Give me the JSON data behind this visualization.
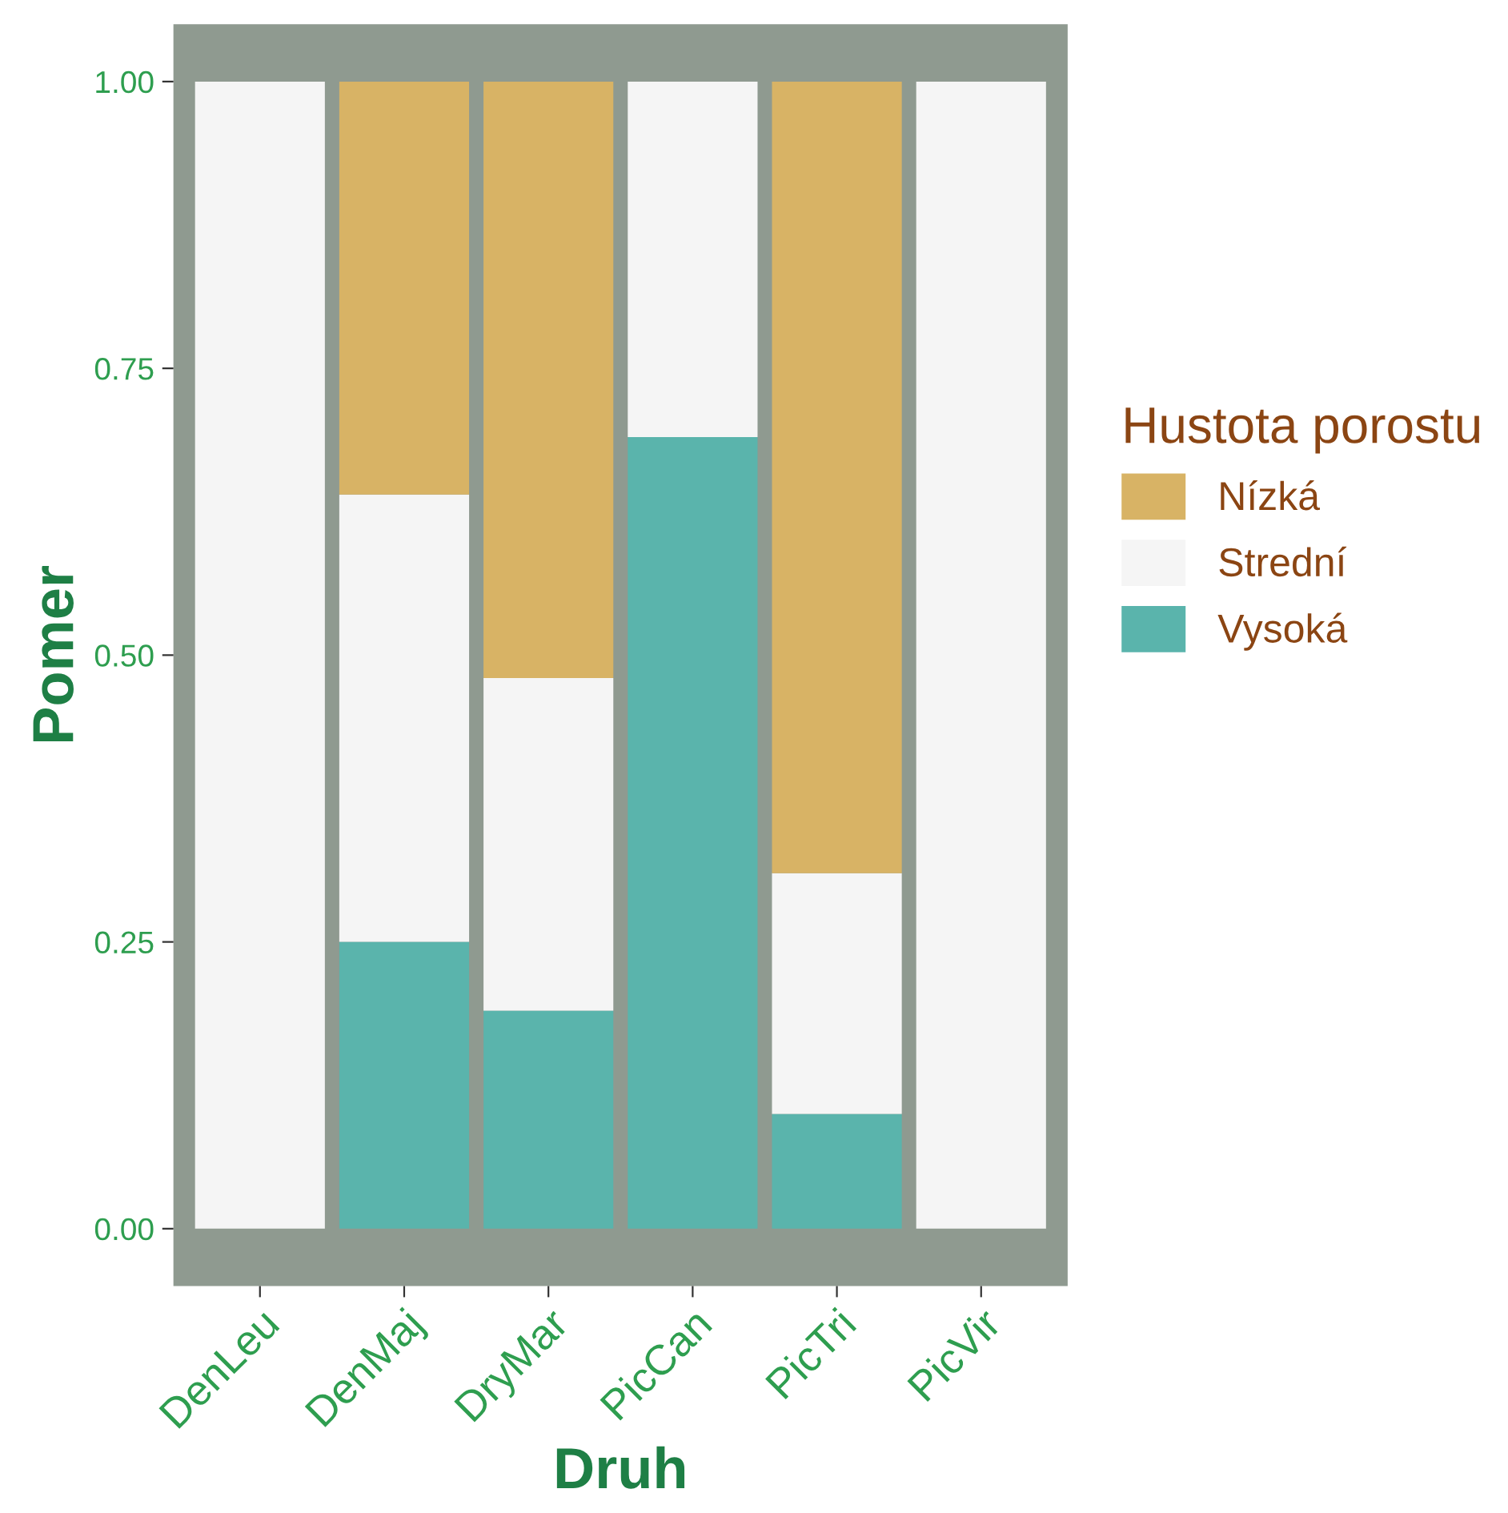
{
  "chart_data": {
    "type": "bar",
    "stacked": true,
    "xlabel": "Druh",
    "ylabel": "Pomer",
    "legend_title": "Hustota porostu",
    "legend": "right",
    "categories": [
      "DenLeu",
      "DenMaj",
      "DryMar",
      "PicCan",
      "PicTri",
      "PicVir"
    ],
    "series": [
      {
        "name": "Vysoká",
        "color": "#5ab4ac",
        "values": [
          0,
          0.25,
          0.19,
          0.69,
          0.1,
          0
        ]
      },
      {
        "name": "Strední",
        "color": "#f5f5f5",
        "values": [
          1,
          0.39,
          0.29,
          0.31,
          0.21,
          1
        ]
      },
      {
        "name": "Nízká",
        "color": "#d8b365",
        "values": [
          0,
          0.36,
          0.52,
          0,
          0.69,
          0
        ]
      }
    ],
    "ylim": [
      -0.05,
      1.05
    ],
    "yticks": [
      {
        "value": 0,
        "label": "0.00"
      },
      {
        "value": 0.25,
        "label": "0.25"
      },
      {
        "value": 0.5,
        "label": "0.50"
      },
      {
        "value": 0.75,
        "label": "0.75"
      },
      {
        "value": 1,
        "label": "1.00"
      }
    ]
  }
}
